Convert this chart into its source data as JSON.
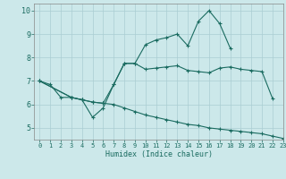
{
  "xlabel": "Humidex (Indice chaleur)",
  "xlim": [
    -0.5,
    23
  ],
  "ylim": [
    4.5,
    10.3
  ],
  "bg_color": "#cce8ea",
  "line_color": "#1a6b60",
  "grid_color": "#aacdd2",
  "xticks": [
    0,
    1,
    2,
    3,
    4,
    5,
    6,
    7,
    8,
    9,
    10,
    11,
    12,
    13,
    14,
    15,
    16,
    17,
    18,
    19,
    20,
    21,
    22,
    23
  ],
  "yticks": [
    5,
    6,
    7,
    8,
    9,
    10
  ],
  "series": [
    {
      "x": [
        0,
        1,
        2,
        3,
        4,
        5,
        6,
        7,
        8,
        9,
        10,
        11,
        12,
        13,
        14,
        15,
        16,
        17,
        18
      ],
      "y": [
        7.0,
        6.85,
        6.3,
        6.3,
        6.2,
        5.45,
        5.85,
        6.85,
        7.75,
        7.75,
        8.55,
        8.75,
        8.85,
        9.0,
        8.5,
        9.55,
        10.0,
        9.45,
        8.4
      ]
    },
    {
      "x": [
        0,
        3,
        4,
        5,
        6,
        7,
        8,
        9,
        10,
        11,
        12,
        13,
        14,
        15,
        16,
        17,
        18,
        19,
        20,
        21,
        22
      ],
      "y": [
        7.0,
        6.3,
        6.2,
        6.1,
        6.05,
        6.85,
        7.75,
        7.75,
        7.5,
        7.55,
        7.6,
        7.65,
        7.45,
        7.4,
        7.35,
        7.55,
        7.6,
        7.5,
        7.45,
        7.4,
        6.25
      ]
    },
    {
      "x": [
        0,
        3,
        4,
        5,
        6,
        7,
        8,
        9,
        10,
        11,
        12,
        13,
        14,
        15,
        16,
        17,
        18,
        19,
        20,
        21,
        22,
        23
      ],
      "y": [
        7.0,
        6.3,
        6.2,
        6.1,
        6.05,
        6.0,
        5.85,
        5.7,
        5.55,
        5.45,
        5.35,
        5.25,
        5.15,
        5.1,
        5.0,
        4.95,
        4.9,
        4.85,
        4.8,
        4.75,
        4.65,
        4.55
      ]
    }
  ]
}
